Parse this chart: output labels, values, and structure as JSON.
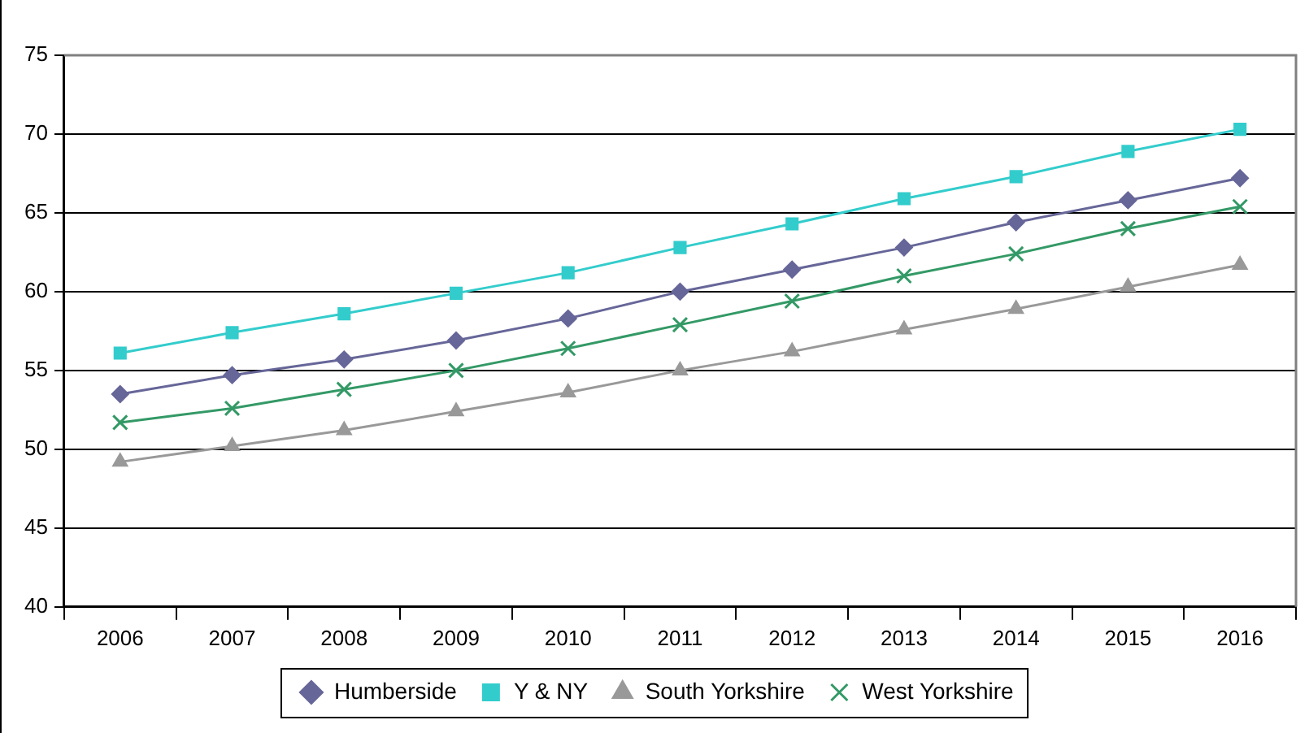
{
  "chart_data": {
    "type": "line",
    "categories": [
      "2006",
      "2007",
      "2008",
      "2009",
      "2010",
      "2011",
      "2012",
      "2013",
      "2014",
      "2015",
      "2016"
    ],
    "series": [
      {
        "name": "Humberside",
        "color": "#666699",
        "marker": "diamond",
        "values": [
          53.5,
          54.7,
          55.7,
          56.9,
          58.3,
          60.0,
          61.4,
          62.8,
          64.4,
          65.8,
          67.2
        ]
      },
      {
        "name": "Y & NY",
        "color": "#33cccc",
        "marker": "square",
        "values": [
          56.1,
          57.4,
          58.6,
          59.9,
          61.2,
          62.8,
          64.3,
          65.9,
          67.3,
          68.9,
          70.3
        ]
      },
      {
        "name": "South Yorkshire",
        "color": "#999999",
        "marker": "triangle",
        "values": [
          49.2,
          50.2,
          51.2,
          52.4,
          53.6,
          55.0,
          56.2,
          57.6,
          58.9,
          60.3,
          61.7
        ]
      },
      {
        "name": "West Yorkshire",
        "color": "#339966",
        "marker": "cross",
        "values": [
          51.7,
          52.6,
          53.8,
          55.0,
          56.4,
          57.9,
          59.4,
          61.0,
          62.4,
          64.0,
          65.4
        ]
      }
    ],
    "ylim": [
      40,
      75
    ],
    "yticks": [
      40,
      45,
      50,
      55,
      60,
      65,
      70,
      75
    ],
    "grid": "y",
    "legend": "bottom",
    "line_style": "solid"
  }
}
